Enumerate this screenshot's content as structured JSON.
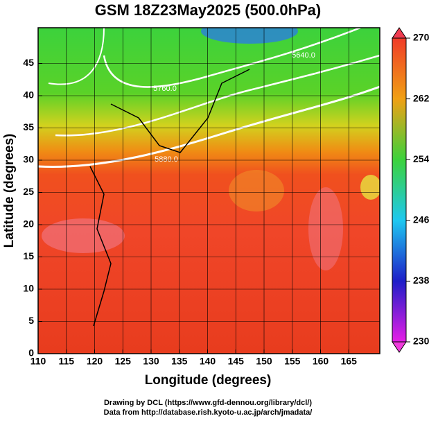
{
  "chart_data": {
    "type": "map",
    "title": "GSM 18Z23May2025 (500.0hPa)",
    "xlabel": "Longitude (degrees)",
    "ylabel": "Latitude  (degrees)",
    "xlim": [
      110,
      170
    ],
    "xticks": [
      110,
      115,
      120,
      125,
      130,
      135,
      140,
      145,
      150,
      155,
      160,
      165
    ],
    "ylim": [
      0,
      50
    ],
    "yticks": [
      0,
      5,
      10,
      15,
      20,
      25,
      30,
      35,
      40,
      45
    ],
    "grid": true,
    "contour_labels": [
      "5880.0",
      "5760.0",
      "5640.0"
    ],
    "colorbar": {
      "lim": [
        230,
        270
      ],
      "ticks": [
        230,
        238,
        246,
        254,
        262,
        270
      ]
    },
    "footer": [
      "Drawing by DCL (https://www.gfd-dennou.org/library/dcl/)",
      "Data from http://database.rish.kyoto-u.ac.jp/arch/jmadata/"
    ]
  }
}
